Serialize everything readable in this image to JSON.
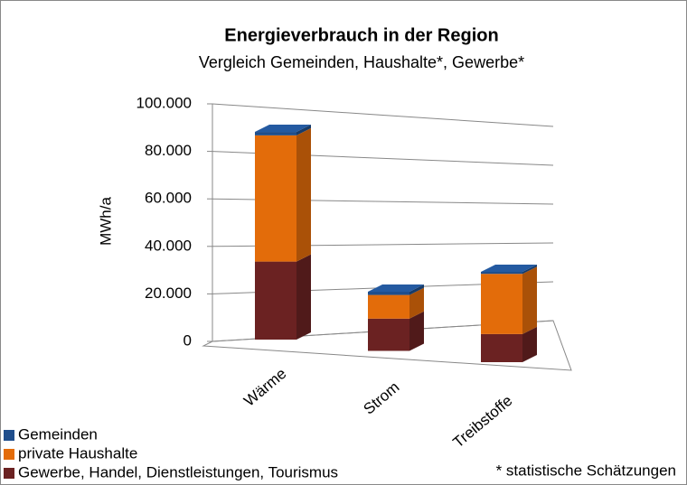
{
  "chart_data": {
    "type": "bar3d_stacked",
    "title": "Energieverbrauch  in der Region",
    "subtitle": "Vergleich Gemeinden, Haushalte*,  Gewerbe*",
    "y_label": "MWh/a",
    "footnote": "* statistische Schätzungen",
    "categories": [
      "Wärme",
      "Strom",
      "Treibstoffe"
    ],
    "series": [
      {
        "name": "Gewerbe, Handel, Dienstleistungen, Tourismus",
        "color": "#6b2222",
        "values": [
          34000,
          15000,
          14000
        ]
      },
      {
        "name": "private Haushalte",
        "color": "#e36c0a",
        "values": [
          55000,
          11000,
          30000
        ]
      },
      {
        "name": "Gemeinden",
        "color": "#1f4e8c",
        "values": [
          1500,
          1500,
          1000
        ]
      }
    ],
    "ylim": [
      0,
      100000
    ],
    "yticks": [
      0,
      {
        "value": 20000,
        "label": "20.000"
      },
      {
        "value": 40000,
        "label": "40.000"
      },
      {
        "value": 60000,
        "label": "60.000"
      },
      {
        "value": 80000,
        "label": "80.000"
      },
      {
        "value": 100000,
        "label": "100.000"
      }
    ],
    "grid": true
  }
}
